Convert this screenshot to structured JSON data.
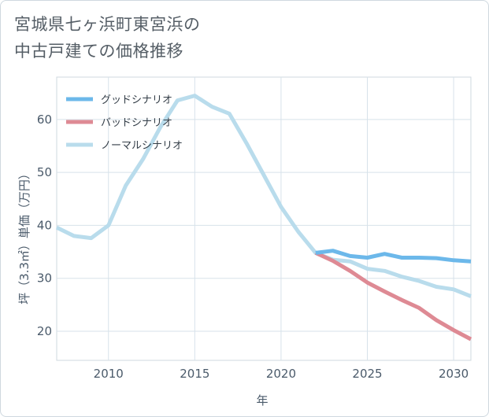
{
  "title_lines": [
    "宮城県七ヶ浜町東宮浜の",
    "中古戸建ての価格推移"
  ],
  "chart_data": {
    "type": "line",
    "title": "宮城県七ヶ浜町東宮浜の中古戸建ての価格推移",
    "xlabel": "年",
    "ylabel": "坪（3.3㎡）単価（万円）",
    "xlim": [
      2007,
      2031
    ],
    "ylim": [
      14.5,
      68
    ],
    "xticks": [
      2010,
      2015,
      2020,
      2025,
      2030
    ],
    "yticks": [
      20,
      30,
      40,
      50,
      60
    ],
    "grid": true,
    "legend_position": "top-left",
    "series": [
      {
        "name": "グッドシナリオ",
        "color": "#6cb8ea",
        "x": [
          2022,
          2023,
          2024,
          2025,
          2026,
          2027,
          2028,
          2029,
          2030,
          2031
        ],
        "values": [
          34.8,
          35.2,
          34.2,
          33.9,
          34.6,
          33.9,
          33.9,
          33.8,
          33.4,
          33.2
        ]
      },
      {
        "name": "バッドシナリオ",
        "color": "#de8a94",
        "x": [
          2022,
          2023,
          2024,
          2025,
          2026,
          2027,
          2028,
          2029,
          2030,
          2031
        ],
        "values": [
          34.8,
          33.3,
          31.4,
          29.2,
          27.5,
          25.9,
          24.4,
          22.1,
          20.2,
          18.5
        ]
      },
      {
        "name": "ノーマルシナリオ",
        "color": "#b9dcec",
        "x": [
          2007,
          2008,
          2009,
          2010,
          2011,
          2012,
          2013,
          2014,
          2015,
          2016,
          2017,
          2018,
          2019,
          2020,
          2021,
          2022,
          2023,
          2024,
          2025,
          2026,
          2027,
          2028,
          2029,
          2030,
          2031
        ],
        "values": [
          39.6,
          38.0,
          37.6,
          40.0,
          47.5,
          52.5,
          58.5,
          63.6,
          64.5,
          62.4,
          61.1,
          55.5,
          49.5,
          43.5,
          38.8,
          34.8,
          33.5,
          33.2,
          31.8,
          31.4,
          30.3,
          29.5,
          28.4,
          27.9,
          26.6
        ]
      }
    ]
  }
}
